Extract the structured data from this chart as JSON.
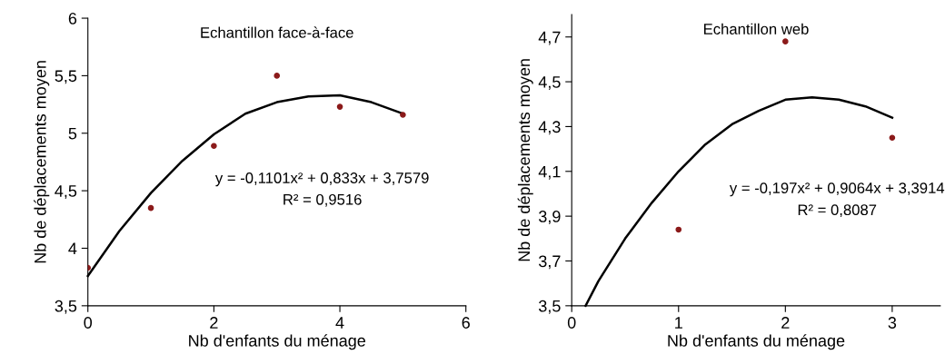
{
  "chart_data": [
    {
      "type": "scatter",
      "title": "Echantillon face-à-face",
      "xlabel": "Nb d'enfants du ménage",
      "ylabel": "Nb de déplacements moyen",
      "series": [
        {
          "color": "#8b1a1a",
          "x": [
            0,
            1,
            2,
            3,
            4,
            5
          ],
          "values": [
            3.83,
            4.35,
            4.89,
            5.5,
            5.23,
            5.16
          ]
        },
        {
          "type": "line",
          "color": "#000000",
          "x": [
            0,
            0.5,
            1,
            1.5,
            2,
            2.5,
            3,
            3.5,
            4,
            4.5,
            5
          ],
          "values": [
            3.76,
            4.15,
            4.48,
            4.76,
            4.99,
            5.17,
            5.27,
            5.32,
            5.33,
            5.27,
            5.17
          ]
        }
      ],
      "xlim": [
        0,
        6
      ],
      "xticks": [
        0,
        2,
        4,
        6
      ],
      "ylim": [
        3.5,
        6
      ],
      "yticks": [
        {
          "value": 3.5,
          "label": "3,5"
        },
        4,
        {
          "value": 4.5,
          "label": "4,5"
        },
        5,
        {
          "value": 5.5,
          "label": "5,5"
        },
        6
      ],
      "annotations": [
        "y = -0,1101x² + 0,833x + 3,7579",
        "R² = 0,9516"
      ],
      "grid": false,
      "legend": false
    },
    {
      "type": "scatter",
      "title": "Echantillon web",
      "xlabel": "Nb d'enfants du ménage",
      "ylabel": "Nb de déplacements moyen",
      "series": [
        {
          "color": "#8b1a1a",
          "x": [
            1,
            2,
            3
          ],
          "values": [
            3.84,
            4.68,
            4.25
          ]
        },
        {
          "type": "line",
          "color": "#000000",
          "x": [
            0.13,
            0.25,
            0.5,
            0.75,
            1,
            1.25,
            1.5,
            1.75,
            2,
            2.25,
            2.5,
            2.75,
            3
          ],
          "values": [
            3.5,
            3.61,
            3.8,
            3.96,
            4.1,
            4.22,
            4.31,
            4.37,
            4.42,
            4.43,
            4.42,
            4.39,
            4.34
          ]
        }
      ],
      "xlim": [
        0,
        3.45
      ],
      "xticks": [
        0,
        1,
        2,
        3
      ],
      "ylim": [
        3.5,
        4.8
      ],
      "yticks": [
        {
          "value": 3.5,
          "label": "3,5"
        },
        {
          "value": 3.7,
          "label": "3,7"
        },
        {
          "value": 3.9,
          "label": "3,9"
        },
        {
          "value": 4.1,
          "label": "4,1"
        },
        {
          "value": 4.3,
          "label": "4,3"
        },
        {
          "value": 4.5,
          "label": "4,5"
        },
        {
          "value": 4.7,
          "label": "4,7"
        }
      ],
      "annotations": [
        "y = -0,197x² + 0,9064x + 3,3914",
        "R² = 0,8087"
      ],
      "grid": false,
      "legend": false
    }
  ]
}
